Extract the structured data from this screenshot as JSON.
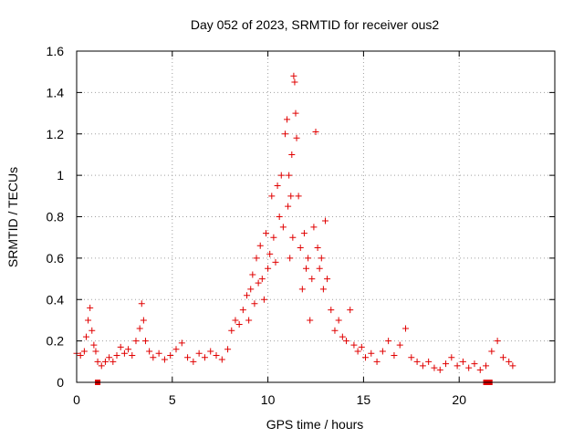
{
  "chart_data": {
    "type": "scatter",
    "title": "Day 052 of 2023, SRMTID for receiver ous2",
    "xlabel": "GPS time / hours",
    "ylabel": "SRMTID / TECUs",
    "xlim": [
      0,
      25
    ],
    "ylim": [
      0,
      1.6
    ],
    "xticks": [
      0,
      5,
      10,
      15,
      20
    ],
    "xtick_labels": [
      "0",
      "5",
      "10",
      "15",
      "20"
    ],
    "yticks": [
      0,
      0.2,
      0.4,
      0.6,
      0.8,
      1.0,
      1.2,
      1.4,
      1.6
    ],
    "ytick_labels": [
      "0",
      "0.2",
      "0.4",
      "0.6",
      "0.8",
      "1",
      "1.2",
      "1.4",
      "1.6"
    ],
    "grid": true,
    "marker": "plus",
    "color": "#e00000",
    "series": [
      {
        "name": "SRMTID",
        "x": [
          0.0,
          0.2,
          0.4,
          0.5,
          0.6,
          0.7,
          0.8,
          0.9,
          1.0,
          1.1,
          1.3,
          1.5,
          1.7,
          1.9,
          2.1,
          2.3,
          2.5,
          2.7,
          2.9,
          3.1,
          3.3,
          3.4,
          3.5,
          3.6,
          3.8,
          4.0,
          4.3,
          4.6,
          4.9,
          5.2,
          5.5,
          5.8,
          6.1,
          6.4,
          6.7,
          7.0,
          7.3,
          7.6,
          7.9,
          8.1,
          8.3,
          8.5,
          8.7,
          8.9,
          9.0,
          9.1,
          9.2,
          9.3,
          9.4,
          9.5,
          9.6,
          9.7,
          9.8,
          9.9,
          10.0,
          10.1,
          10.2,
          10.3,
          10.4,
          10.5,
          10.6,
          10.7,
          10.8,
          10.9,
          11.0,
          11.05,
          11.1,
          11.15,
          11.2,
          11.25,
          11.3,
          11.35,
          11.4,
          11.45,
          11.5,
          11.6,
          11.7,
          11.8,
          11.9,
          12.0,
          12.1,
          12.2,
          12.3,
          12.4,
          12.5,
          12.6,
          12.7,
          12.8,
          12.9,
          13.0,
          13.1,
          13.3,
          13.5,
          13.7,
          13.9,
          14.1,
          14.3,
          14.5,
          14.7,
          14.9,
          15.1,
          15.4,
          15.7,
          16.0,
          16.3,
          16.6,
          16.9,
          17.2,
          17.5,
          17.8,
          18.1,
          18.4,
          18.7,
          19.0,
          19.3,
          19.6,
          19.9,
          20.2,
          20.5,
          20.8,
          21.1,
          21.4,
          21.7,
          22.0,
          22.3,
          22.6,
          22.8
        ],
        "y": [
          0.14,
          0.13,
          0.15,
          0.22,
          0.3,
          0.36,
          0.25,
          0.18,
          0.15,
          0.1,
          0.08,
          0.1,
          0.12,
          0.1,
          0.13,
          0.17,
          0.14,
          0.16,
          0.13,
          0.2,
          0.26,
          0.38,
          0.3,
          0.2,
          0.15,
          0.12,
          0.14,
          0.11,
          0.13,
          0.16,
          0.19,
          0.12,
          0.1,
          0.14,
          0.12,
          0.15,
          0.13,
          0.11,
          0.16,
          0.25,
          0.3,
          0.28,
          0.35,
          0.42,
          0.3,
          0.45,
          0.52,
          0.38,
          0.6,
          0.48,
          0.66,
          0.5,
          0.4,
          0.72,
          0.55,
          0.62,
          0.9,
          0.7,
          0.58,
          0.95,
          0.8,
          1.0,
          0.75,
          1.2,
          1.27,
          0.85,
          1.0,
          0.6,
          0.9,
          1.1,
          0.7,
          1.48,
          1.45,
          1.3,
          1.18,
          0.9,
          0.65,
          0.45,
          0.72,
          0.55,
          0.6,
          0.3,
          0.5,
          0.75,
          1.21,
          0.65,
          0.55,
          0.6,
          0.45,
          0.78,
          0.5,
          0.35,
          0.25,
          0.3,
          0.22,
          0.2,
          0.35,
          0.18,
          0.15,
          0.17,
          0.12,
          0.14,
          0.1,
          0.15,
          0.2,
          0.13,
          0.18,
          0.26,
          0.12,
          0.1,
          0.08,
          0.1,
          0.07,
          0.06,
          0.09,
          0.12,
          0.08,
          0.1,
          0.07,
          0.09,
          0.06,
          0.08,
          0.15,
          0.2,
          0.12,
          0.1,
          0.08
        ]
      },
      {
        "name": "gap markers",
        "marker": "square",
        "x": [
          1.1,
          21.4,
          21.6
        ],
        "y": [
          0,
          0,
          0
        ]
      }
    ]
  }
}
